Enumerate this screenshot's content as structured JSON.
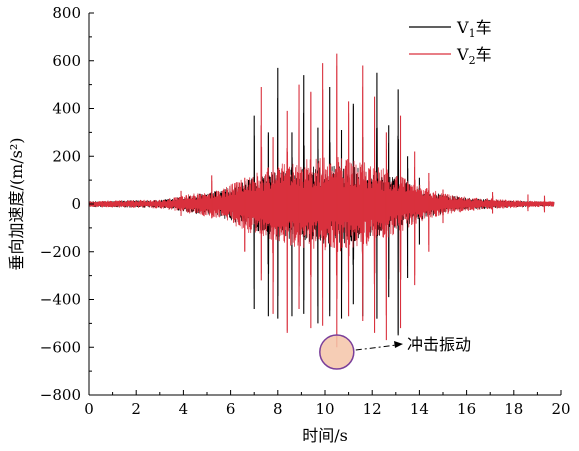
{
  "chart_data": {
    "type": "line",
    "xlabel": "时间/s",
    "ylabel": "垂向加速度/(m/s²)",
    "xlim": [
      0,
      20
    ],
    "ylim": [
      -800,
      800
    ],
    "x_ticks": [
      0,
      2,
      4,
      6,
      8,
      10,
      12,
      14,
      16,
      18,
      20
    ],
    "y_ticks": [
      -800,
      -600,
      -400,
      -200,
      0,
      200,
      400,
      600,
      800
    ],
    "grid": false,
    "legend_position": "top-right",
    "series": [
      {
        "name": "V1车",
        "name_main": "V",
        "name_sub": "1",
        "name_suffix": "车",
        "color": "#000000",
        "envelope": {
          "t": [
            0,
            1,
            2,
            3,
            3.8,
            4.5,
            5.5,
            6,
            6.5,
            7,
            7.5,
            8,
            8.5,
            9,
            9.5,
            10,
            10.5,
            11,
            11.5,
            12,
            12.5,
            13,
            13.5,
            14,
            14.5,
            15,
            16,
            17,
            18,
            19,
            19.7
          ],
          "amp": [
            10,
            12,
            15,
            15,
            28,
            40,
            55,
            70,
            90,
            110,
            130,
            140,
            150,
            155,
            160,
            165,
            170,
            160,
            150,
            140,
            130,
            110,
            90,
            70,
            50,
            40,
            25,
            18,
            12,
            10,
            8
          ]
        },
        "spikes": [
          {
            "t": 6.0,
            "pos": 30,
            "neg": -60
          },
          {
            "t": 7.0,
            "pos": 370,
            "neg": -440
          },
          {
            "t": 7.6,
            "pos": 300,
            "neg": -470
          },
          {
            "t": 8.0,
            "pos": 570,
            "neg": -480
          },
          {
            "t": 8.6,
            "pos": 300,
            "neg": -470
          },
          {
            "t": 9.1,
            "pos": 540,
            "neg": -460
          },
          {
            "t": 9.7,
            "pos": 320,
            "neg": -500
          },
          {
            "t": 10.2,
            "pos": 490,
            "neg": -470
          },
          {
            "t": 10.7,
            "pos": 310,
            "neg": -480
          },
          {
            "t": 11.2,
            "pos": 420,
            "neg": -420
          },
          {
            "t": 11.6,
            "pos": 280,
            "neg": -470
          },
          {
            "t": 12.2,
            "pos": 550,
            "neg": -480
          },
          {
            "t": 12.7,
            "pos": 330,
            "neg": -390
          },
          {
            "t": 13.1,
            "pos": 480,
            "neg": -550
          },
          {
            "t": 13.5,
            "pos": 200,
            "neg": -310
          },
          {
            "t": 14.0,
            "pos": 110,
            "neg": -170
          }
        ]
      },
      {
        "name": "V2车",
        "name_main": "V",
        "name_sub": "2",
        "name_suffix": "车",
        "color": "#d9303d",
        "envelope": {
          "t": [
            0,
            1,
            2,
            3,
            3.8,
            4.5,
            5.5,
            6,
            6.5,
            7,
            7.5,
            8,
            8.5,
            9,
            9.5,
            10,
            10.5,
            11,
            11.5,
            12,
            12.5,
            13,
            13.5,
            14,
            14.5,
            15,
            16,
            17,
            18,
            19,
            19.7
          ],
          "amp": [
            12,
            14,
            16,
            18,
            30,
            45,
            60,
            80,
            110,
            130,
            150,
            165,
            175,
            185,
            190,
            195,
            200,
            190,
            180,
            170,
            150,
            130,
            100,
            80,
            60,
            45,
            30,
            22,
            15,
            12,
            10
          ]
        },
        "spikes": [
          {
            "t": 3.9,
            "pos": 55,
            "neg": -50
          },
          {
            "t": 5.2,
            "pos": 120,
            "neg": -60
          },
          {
            "t": 6.6,
            "pos": 110,
            "neg": -200
          },
          {
            "t": 7.3,
            "pos": 490,
            "neg": -320
          },
          {
            "t": 7.8,
            "pos": 280,
            "neg": -460
          },
          {
            "t": 8.4,
            "pos": 390,
            "neg": -540
          },
          {
            "t": 8.9,
            "pos": 500,
            "neg": -440
          },
          {
            "t": 9.4,
            "pos": 470,
            "neg": -520
          },
          {
            "t": 9.9,
            "pos": 590,
            "neg": -510
          },
          {
            "t": 10.5,
            "pos": 630,
            "neg": -600
          },
          {
            "t": 11.0,
            "pos": 430,
            "neg": -470
          },
          {
            "t": 11.6,
            "pos": 580,
            "neg": -490
          },
          {
            "t": 12.1,
            "pos": 450,
            "neg": -540
          },
          {
            "t": 12.6,
            "pos": 300,
            "neg": -570
          },
          {
            "t": 13.2,
            "pos": 370,
            "neg": -520
          },
          {
            "t": 13.8,
            "pos": 220,
            "neg": -340
          },
          {
            "t": 14.4,
            "pos": 130,
            "neg": -200
          },
          {
            "t": 15.0,
            "pos": 60,
            "neg": -80
          },
          {
            "t": 17.1,
            "pos": 50,
            "neg": -40
          },
          {
            "t": 18.6,
            "pos": 40,
            "neg": -30
          },
          {
            "t": 19.3,
            "pos": 35,
            "neg": -35
          }
        ]
      }
    ],
    "annotation": {
      "text": "冲击振动",
      "target": {
        "t": 10.5,
        "value": -620
      },
      "marker_fill": "#f4c4a8",
      "marker_stroke": "#7a3f9a"
    }
  }
}
